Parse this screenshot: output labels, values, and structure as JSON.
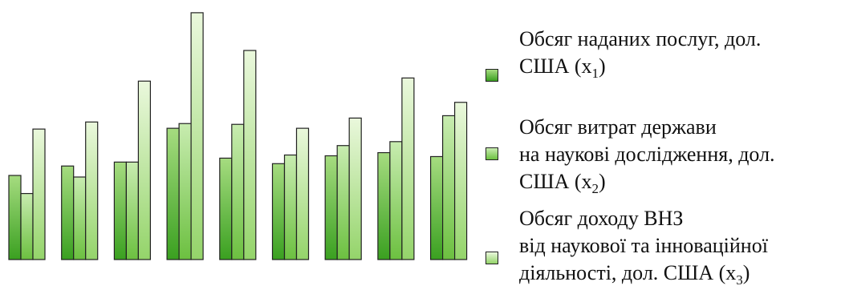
{
  "chart_data": {
    "type": "bar",
    "title": "",
    "xlabel": "",
    "ylabel": "",
    "grid": false,
    "legend_position": "right",
    "categories": [
      "",
      "",
      "",
      "",
      "",
      "",
      "",
      "",
      ""
    ],
    "series": [
      {
        "name": "Обсяг наданих послуг, дол. США (x1)",
        "values": [
          107,
          119,
          124,
          167,
          129,
          122,
          132,
          136,
          131
        ],
        "color_top": "#a6dc80",
        "color_bottom": "#3aa020",
        "legend_lines": [
          "Обсяг наданих послуг, дол.",
          "США (x",
          "1",
          ")"
        ]
      },
      {
        "name": "Обсяг витрат держави на наукові дослідження, дол. США (x2)",
        "values": [
          84,
          105,
          124,
          173,
          172,
          133,
          145,
          150,
          183
        ],
        "color_top": "#c8ecb0",
        "color_bottom": "#6cc040",
        "legend_lines": [
          "Обсяг витрат держави",
          "на наукові дослідження, дол.",
          "США (x",
          "2",
          ")"
        ]
      },
      {
        "name": "Обсяг доходу ВНЗ від наукової та інноваційної діяльності, дол. США (x3)",
        "values": [
          166,
          175,
          227,
          314,
          266,
          167,
          180,
          231,
          200
        ],
        "color_top": "#eaf8dc",
        "color_bottom": "#94d46a",
        "legend_lines": [
          "Обсяг доходу ВНЗ",
          "від наукової та інноваційної",
          "діяльності, дол. США (x",
          "3",
          ")"
        ]
      }
    ],
    "ylim": [
      0,
      320
    ]
  }
}
